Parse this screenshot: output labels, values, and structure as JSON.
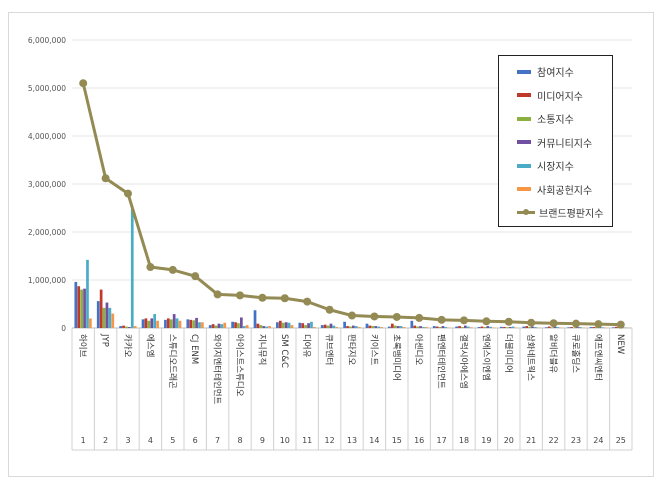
{
  "chart_data": {
    "type": "bar",
    "title": "",
    "xlabel": "",
    "ylabel": "",
    "ylim": [
      0,
      6000000
    ],
    "yticks": [
      "0",
      "1,000,000",
      "2,000,000",
      "3,000,000",
      "4,000,000",
      "5,000,000",
      "6,000,000"
    ],
    "grid": true,
    "legend_position": "top-right",
    "categories": [
      "하이브",
      "JYP",
      "카카오",
      "에스엠",
      "스튜디오드래곤",
      "CJ ENM",
      "와이지엔터테인먼트",
      "아이스트스튜디오",
      "지니뮤직",
      "SM C&C",
      "디어유",
      "큐브엔터",
      "판타지오",
      "키이스트",
      "초록뱀미디어",
      "아센디오",
      "팬엔터테인먼트",
      "갤럭시아에스엠",
      "엔에스이엔엠",
      "더블미디어",
      "삼화네트웍스",
      "알비더블유",
      "큐로홀딩스",
      "에프엔씨엔터",
      "NEW"
    ],
    "ranks": [
      "1",
      "2",
      "3",
      "4",
      "5",
      "6",
      "7",
      "8",
      "9",
      "10",
      "11",
      "12",
      "13",
      "14",
      "15",
      "16",
      "17",
      "18",
      "19",
      "20",
      "21",
      "22",
      "23",
      "24",
      "25"
    ],
    "series": [
      {
        "name": "참여지수",
        "color": "#4472C4",
        "values": [
          960000,
          560000,
          40000,
          180000,
          170000,
          180000,
          60000,
          130000,
          370000,
          120000,
          110000,
          60000,
          130000,
          90000,
          30000,
          150000,
          40000,
          30000,
          20000,
          25000,
          30000,
          15000,
          15000,
          20000,
          15000
        ]
      },
      {
        "name": "미디어지수",
        "color": "#C0392B",
        "values": [
          870000,
          800000,
          50000,
          200000,
          200000,
          170000,
          80000,
          120000,
          90000,
          150000,
          100000,
          70000,
          40000,
          50000,
          90000,
          50000,
          30000,
          40000,
          30000,
          20000,
          40000,
          30000,
          20000,
          20000,
          25000
        ]
      },
      {
        "name": "소통지수",
        "color": "#8CB040",
        "values": [
          800000,
          420000,
          30000,
          150000,
          180000,
          160000,
          50000,
          100000,
          60000,
          110000,
          60000,
          50000,
          30000,
          40000,
          50000,
          30000,
          20000,
          20000,
          20000,
          15000,
          20000,
          15000,
          10000,
          15000,
          10000
        ]
      },
      {
        "name": "커뮤니티지수",
        "color": "#7050A0",
        "values": [
          820000,
          530000,
          20000,
          200000,
          290000,
          210000,
          90000,
          220000,
          40000,
          120000,
          100000,
          90000,
          50000,
          40000,
          40000,
          40000,
          40000,
          50000,
          40000,
          20000,
          30000,
          30000,
          20000,
          30000,
          20000
        ]
      },
      {
        "name": "시장지수",
        "color": "#4BACC6",
        "values": [
          1420000,
          420000,
          2480000,
          290000,
          200000,
          120000,
          80000,
          40000,
          30000,
          110000,
          130000,
          50000,
          40000,
          30000,
          40000,
          20000,
          20000,
          30000,
          25000,
          30000,
          20000,
          20000,
          20000,
          15000,
          10000
        ]
      },
      {
        "name": "사회공헌지수",
        "color": "#F79646",
        "values": [
          200000,
          300000,
          40000,
          150000,
          150000,
          120000,
          110000,
          60000,
          40000,
          60000,
          20000,
          20000,
          20000,
          20000,
          20000,
          20000,
          10000,
          15000,
          10000,
          10000,
          10000,
          10000,
          10000,
          10000,
          10000
        ]
      },
      {
        "name": "브랜드평판지수",
        "color": "#948A54",
        "type": "line",
        "values": [
          5100000,
          3120000,
          2800000,
          1270000,
          1210000,
          1080000,
          700000,
          680000,
          630000,
          620000,
          550000,
          380000,
          260000,
          240000,
          230000,
          210000,
          170000,
          160000,
          140000,
          130000,
          110000,
          100000,
          90000,
          80000,
          70000
        ]
      }
    ]
  }
}
